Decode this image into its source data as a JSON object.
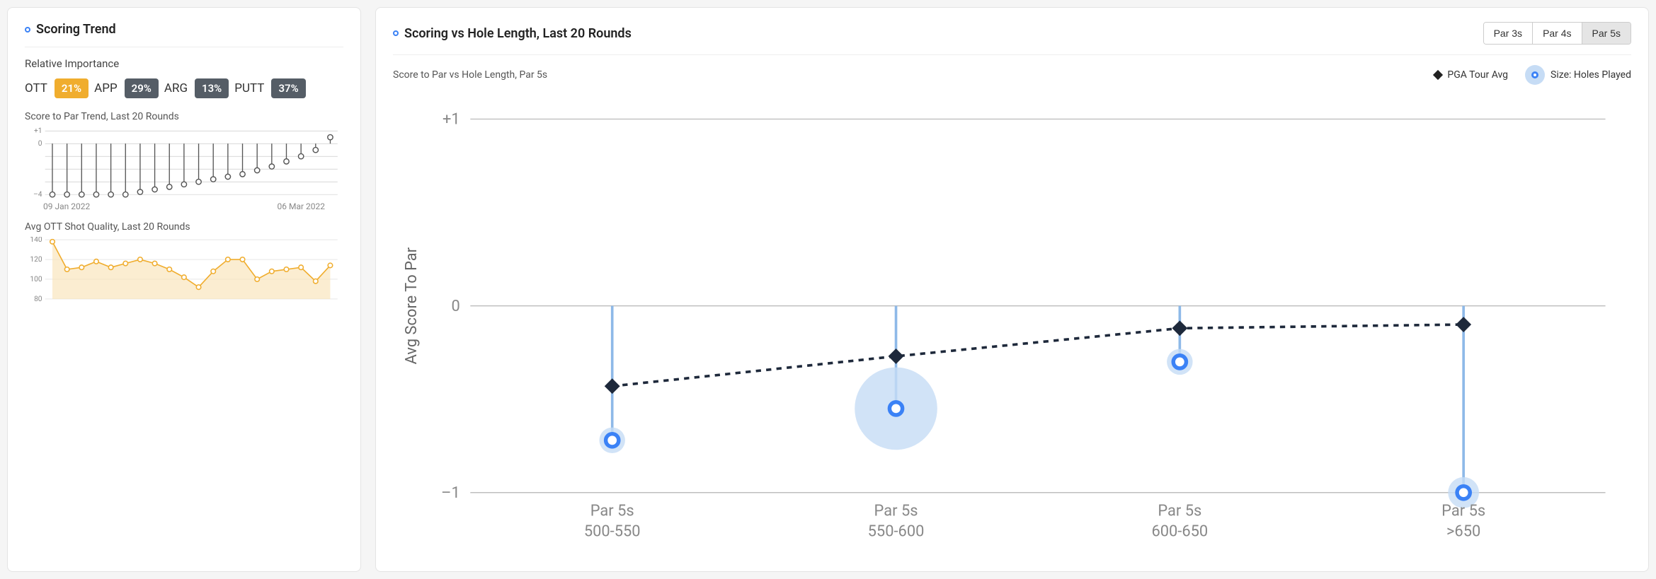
{
  "left": {
    "title": "Scoring Trend",
    "relative_importance_label": "Relative Importance",
    "importance": [
      {
        "label": "OTT",
        "value": "21%",
        "highlight": true
      },
      {
        "label": "APP",
        "value": "29%",
        "highlight": false
      },
      {
        "label": "ARG",
        "value": "13%",
        "highlight": false
      },
      {
        "label": "PUTT",
        "value": "37%",
        "highlight": false
      }
    ],
    "score_trend": {
      "subtitle": "Score to Par Trend, Last 20 Rounds",
      "y_ticks": [
        1,
        0,
        -4
      ],
      "y_tick_labels": [
        "+1",
        "0",
        "–4"
      ],
      "ylim": [
        -4,
        1
      ],
      "values": [
        -4.0,
        -4.0,
        -4.0,
        -4.0,
        -4.0,
        -4.0,
        -3.8,
        -3.6,
        -3.4,
        -3.2,
        -3.0,
        -2.8,
        -2.6,
        -2.4,
        -2.1,
        -1.8,
        -1.4,
        -1.0,
        -0.5,
        0.5
      ],
      "date_start": "09 Jan 2022",
      "date_end": "06 Mar 2022",
      "line_color": "#555555",
      "grid_color": "#bfbfbf"
    },
    "ott_quality": {
      "subtitle": "Avg OTT Shot Quality, Last 20 Rounds",
      "y_ticks": [
        140,
        120,
        100,
        80
      ],
      "ylim": [
        80,
        140
      ],
      "values": [
        138,
        110,
        112,
        118,
        112,
        116,
        120,
        116,
        110,
        102,
        92,
        108,
        120,
        120,
        100,
        108,
        110,
        112,
        98,
        114
      ],
      "line_color": "#f0ad2e",
      "fill_color": "#f9e6bd",
      "grid_color": "#d9d9d9"
    }
  },
  "right": {
    "title": "Scoring vs Hole Length, Last 20 Rounds",
    "tabs": [
      "Par 3s",
      "Par 4s",
      "Par 5s"
    ],
    "active_tab": 2,
    "subtitle": "Score to Par vs Hole Length, Par 5s",
    "legend": {
      "pga": "PGA Tour Avg",
      "size": "Size: Holes Played"
    },
    "chart": {
      "y_axis_label": "Avg Score To Par",
      "y_ticks": [
        1,
        0,
        -1
      ],
      "y_tick_labels": [
        "+1",
        "0",
        "–1"
      ],
      "ylim": [
        -1,
        1
      ],
      "categories": [
        {
          "top": "Par 5s",
          "bottom": "500-550"
        },
        {
          "top": "Par 5s",
          "bottom": "550-600"
        },
        {
          "top": "Par 5s",
          "bottom": "600-650"
        },
        {
          "top": "Par 5s",
          "bottom": ">650"
        }
      ],
      "pga_values": [
        -0.43,
        -0.27,
        -0.12,
        -0.1
      ],
      "player_values": [
        -0.72,
        -0.55,
        -0.3,
        -1.0
      ],
      "player_sizes": [
        10,
        32,
        10,
        12
      ],
      "pga_color": "#1e293b",
      "player_color": "#3b82f6",
      "player_fill": "#c6dcf5",
      "stem_color": "#8eb9e8",
      "grid_color": "#bfbfbf"
    }
  }
}
